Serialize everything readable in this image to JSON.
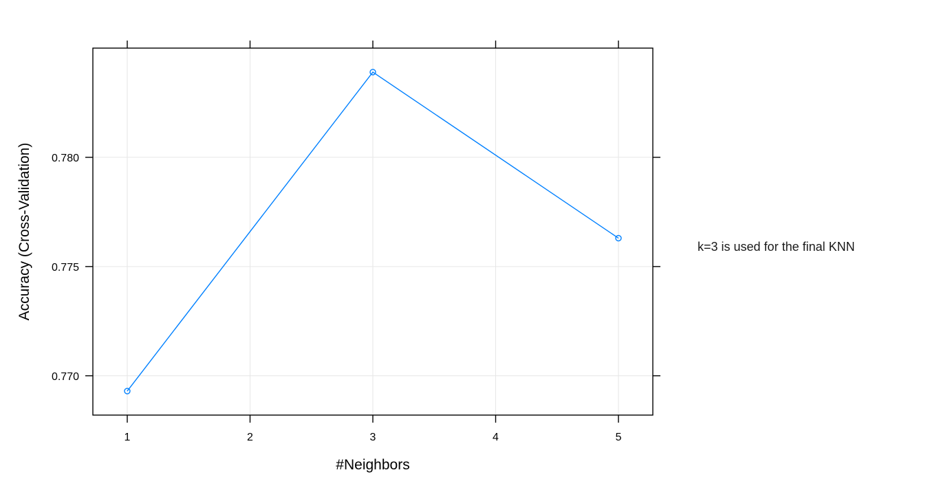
{
  "chart_data": {
    "type": "line",
    "title": "",
    "xlabel": "#Neighbors",
    "ylabel": "Accuracy (Cross-Validation)",
    "x": [
      1,
      3,
      5
    ],
    "series": [
      {
        "values": [
          0.7693,
          0.7839,
          0.7763
        ],
        "color": "#0080ff"
      }
    ],
    "xlim": [
      0.72,
      5.28
    ],
    "ylim": [
      0.7682,
      0.785
    ],
    "xticks": [
      1,
      2,
      3,
      4,
      5
    ],
    "xtick_labels": [
      "1",
      "2",
      "3",
      "4",
      "5"
    ],
    "yticks": [
      0.77,
      0.775,
      0.78
    ],
    "ytick_labels": [
      "0.770",
      "0.775",
      "0.780"
    ],
    "grid": true,
    "grid_color": "#e6e6e6",
    "marker": "open-circle",
    "annotation": "k=3 is used for the final KNN"
  }
}
